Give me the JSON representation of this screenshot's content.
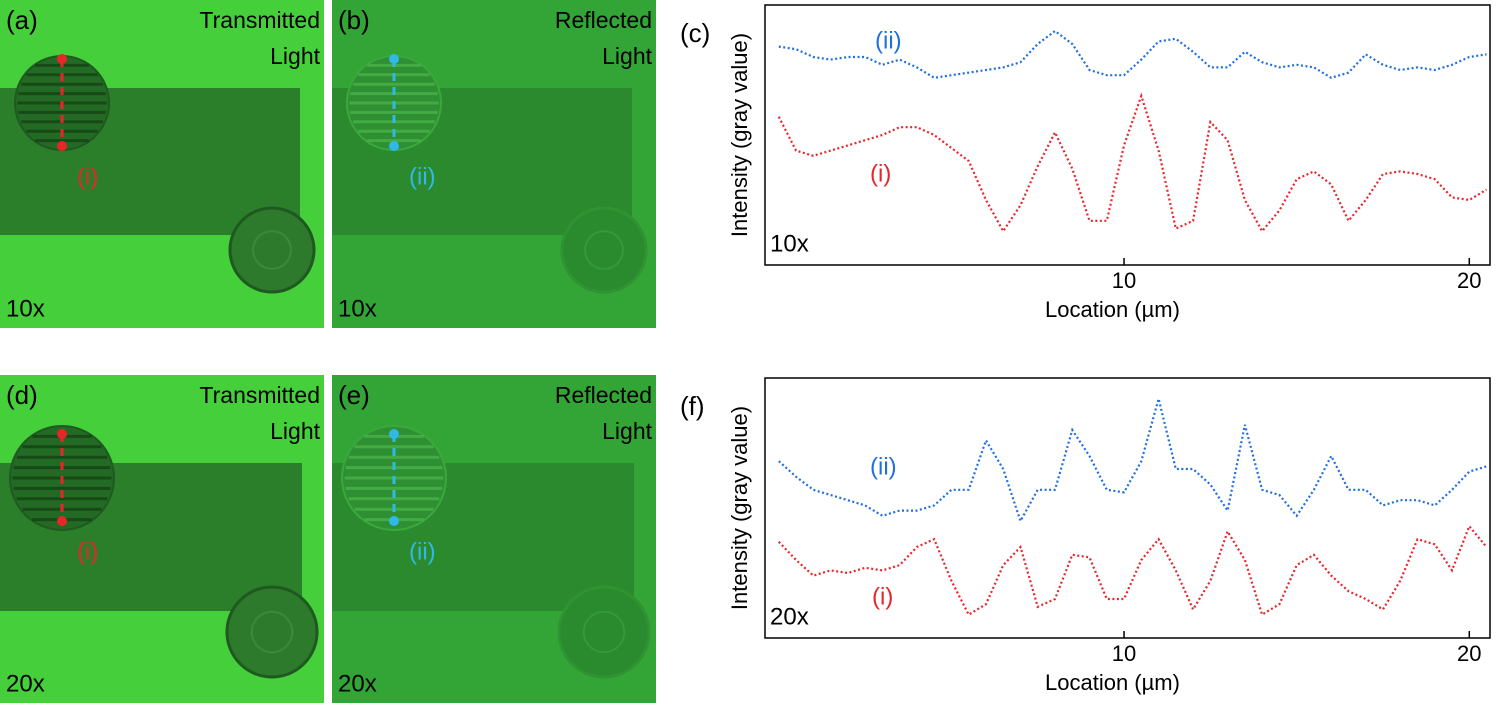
{
  "panels": [
    {
      "label": "(a)",
      "title": [
        "Transmitted",
        "Light"
      ],
      "profile": "(i)",
      "magnification": "10x"
    },
    {
      "label": "(b)",
      "title": [
        "Reflected",
        "Light"
      ],
      "profile": "(ii)",
      "magnification": "10x"
    },
    {
      "label": "(d)",
      "title": [
        "Transmitted",
        "Light"
      ],
      "profile": "(i)",
      "magnification": "20x"
    },
    {
      "label": "(e)",
      "title": [
        "Reflected",
        "Light"
      ],
      "profile": "(ii)",
      "magnification": "20x"
    }
  ],
  "chart_data": [
    {
      "type": "line",
      "panel_label": "(c)",
      "annotation": "10x",
      "x_label": "Location (µm)",
      "y_label": "Intensity (gray value)",
      "xlim": [
        -0.4,
        20.6
      ],
      "xticks": [
        10,
        20
      ],
      "ylim": [
        0,
        100
      ],
      "x": [
        0,
        0.5,
        1,
        1.5,
        2,
        2.5,
        3,
        3.5,
        4,
        4.5,
        5,
        5.5,
        6,
        6.5,
        7,
        7.5,
        8,
        8.5,
        9,
        9.5,
        10,
        10.5,
        11,
        11.5,
        12,
        12.5,
        13,
        13.5,
        14,
        14.5,
        15,
        15.5,
        16,
        16.5,
        17,
        17.5,
        18,
        18.5,
        19,
        19.5,
        20,
        20.5
      ],
      "series": [
        {
          "name": "(ii)",
          "color": "#1f6fe0",
          "values": [
            84,
            83,
            80,
            79,
            80,
            80,
            77,
            79,
            76,
            72,
            73,
            74,
            75,
            76,
            78,
            85,
            90,
            85,
            75,
            73,
            73,
            79,
            86,
            87,
            82,
            76,
            76,
            82,
            78,
            76,
            77,
            76,
            72,
            74,
            81,
            77,
            75,
            76,
            75,
            77,
            80,
            81
          ]
        },
        {
          "name": "(i)",
          "color": "#e8262a",
          "values": [
            57,
            44,
            42,
            44,
            46,
            48,
            50,
            53,
            53,
            50,
            45,
            40,
            25,
            13,
            23,
            38,
            51,
            37,
            17,
            17,
            46,
            65,
            44,
            14,
            17,
            55,
            48,
            25,
            13,
            21,
            33,
            36,
            31,
            17,
            25,
            35,
            36,
            35,
            33,
            26,
            25,
            29
          ]
        }
      ]
    },
    {
      "type": "line",
      "panel_label": "(f)",
      "annotation": "20x",
      "x_label": "Location (µm)",
      "y_label": "Intensity (gray value)",
      "xlim": [
        -0.4,
        20.6
      ],
      "xticks": [
        10,
        20
      ],
      "ylim": [
        0,
        100
      ],
      "x": [
        0,
        0.5,
        1,
        1.5,
        2,
        2.5,
        3,
        3.5,
        4,
        4.5,
        5,
        5.5,
        6,
        6.5,
        7,
        7.5,
        8,
        8.5,
        9,
        9.5,
        10,
        10.5,
        11,
        11.5,
        12,
        12.5,
        13,
        13.5,
        14,
        14.5,
        15,
        15.5,
        16,
        16.5,
        17,
        17.5,
        18,
        18.5,
        19,
        19.5,
        20,
        20.5
      ],
      "series": [
        {
          "name": "(ii)",
          "color": "#1f6fe0",
          "values": [
            68,
            62,
            57,
            55,
            53,
            51,
            47,
            49,
            49,
            51,
            57,
            57,
            76,
            65,
            45,
            57,
            57,
            80,
            70,
            57,
            56,
            68,
            92,
            65,
            65,
            59,
            49,
            82,
            57,
            55,
            47,
            57,
            70,
            57,
            57,
            51,
            53,
            53,
            51,
            57,
            64,
            66
          ]
        },
        {
          "name": "(i)",
          "color": "#e8262a",
          "values": [
            37,
            30,
            24,
            26,
            25,
            27,
            26,
            28,
            35,
            38,
            22,
            9,
            13,
            28,
            35,
            12,
            15,
            32,
            31,
            15,
            15,
            30,
            38,
            26,
            11,
            22,
            41,
            30,
            9,
            13,
            28,
            32,
            24,
            18,
            15,
            11,
            22,
            38,
            36,
            26,
            43,
            35
          ]
        }
      ]
    }
  ]
}
